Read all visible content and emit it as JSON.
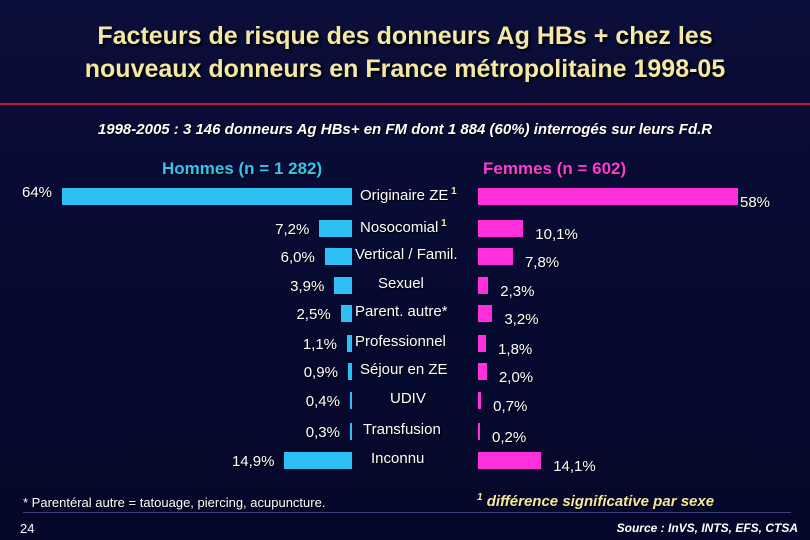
{
  "title_line1": "Facteurs de risque des donneurs Ag HBs + chez les",
  "title_line2": "nouveaux donneurs en France métropolitaine 1998-05",
  "subtitle": "1998-2005 : 3 146 donneurs Ag HBs+ en FM dont 1 884 (60%) interrogés sur leurs Fd.R",
  "men_label": "Hommes (n = 1 282)",
  "women_label": "Femmes (n = 602)",
  "colors": {
    "men": "#2ec0f4",
    "women": "#ff2fdc",
    "title": "#f4e8a4"
  },
  "chart_data": {
    "type": "bar",
    "categories": [
      "Originaire ZE",
      "Nosocomial",
      "Vertical / Famil.",
      "Sexuel",
      "Parent. autre*",
      "Professionnel",
      "Séjour en ZE",
      "UDIV",
      "Transfusion",
      "Inconnu"
    ],
    "significance_marker": [
      "1",
      "1",
      "",
      "",
      "",
      "",
      "",
      "",
      "",
      ""
    ],
    "series": [
      {
        "name": "Hommes (n = 1 282)",
        "values": [
          64,
          7.2,
          6.0,
          3.9,
          2.5,
          1.1,
          0.9,
          0.4,
          0.3,
          14.9
        ],
        "labels": [
          "64%",
          "7,2%",
          "6,0%",
          "3,9%",
          "2,5%",
          "1,1%",
          "0,9%",
          "0,4%",
          "0,3%",
          "14,9%"
        ]
      },
      {
        "name": "Femmes (n = 602)",
        "values": [
          58,
          10.1,
          7.8,
          2.3,
          3.2,
          1.8,
          2.0,
          0.7,
          0.2,
          14.1
        ],
        "labels": [
          "58%",
          "10,1%",
          "7,8%",
          "2,3%",
          "3,2%",
          "1,8%",
          "2,0%",
          "0,7%",
          "0,2%",
          "14,1%"
        ]
      }
    ]
  },
  "footnote": "* Parentéral autre = tatouage, piercing, acupuncture.",
  "sig_marker": "1",
  "sig_note": "différence significative par sexe",
  "page_number": "24",
  "source": "Source : InVS, INTS, EFS, CTSA"
}
